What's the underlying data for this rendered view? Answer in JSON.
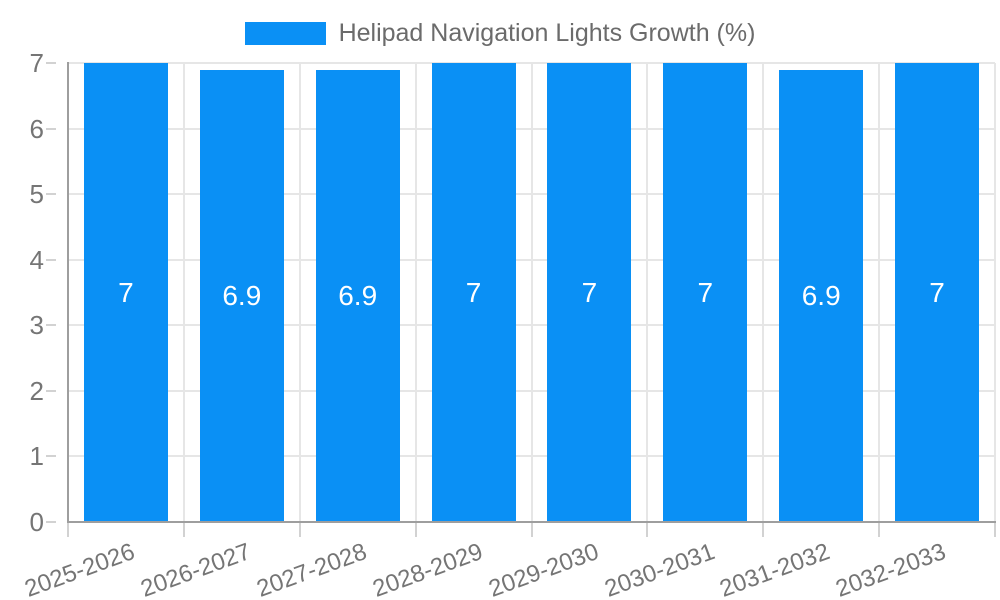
{
  "chart_data": {
    "type": "bar",
    "title": "Helipad Navigation Lights Growth (%)",
    "categories": [
      "2025-2026",
      "2026-2027",
      "2027-2028",
      "2028-2029",
      "2029-2030",
      "2030-2031",
      "2031-2032",
      "2032-2033"
    ],
    "values": [
      7,
      6.9,
      6.9,
      7,
      7,
      7,
      6.9,
      7
    ],
    "value_labels": [
      "7",
      "6.9",
      "6.9",
      "7",
      "7",
      "7",
      "6.9",
      "7"
    ],
    "xlabel": "",
    "ylabel": "",
    "ylim": [
      0,
      7
    ],
    "yticks": [
      0,
      1,
      2,
      3,
      4,
      5,
      6,
      7
    ],
    "grid": true,
    "legend_position": "top",
    "x_label_rotation_deg": -20
  },
  "legend": {
    "label": "Helipad Navigation Lights Growth (%)"
  },
  "colors": {
    "bar": "#0A90F5",
    "grid": "#E6E6E6",
    "axis": "#9E9E9E",
    "tick": "#D2D2D2",
    "axis_label": "#757575",
    "legend_text": "#6B6B6B",
    "bar_label": "#FFFFFF",
    "background": "#FFFFFF"
  }
}
